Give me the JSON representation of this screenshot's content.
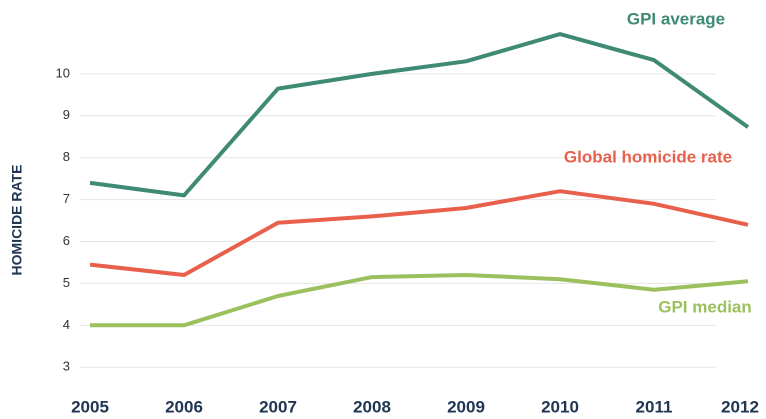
{
  "chart_data": {
    "type": "line",
    "ylabel": "HOMICIDE RATE",
    "categories": [
      "2005",
      "2006",
      "2007",
      "2008",
      "2009",
      "2010",
      "2011",
      "2012"
    ],
    "series": [
      {
        "name": "GPI average",
        "color": "#3f8a74",
        "values": [
          7.4,
          7.1,
          9.65,
          10.0,
          10.3,
          10.95,
          10.33,
          8.73
        ]
      },
      {
        "name": "Global homicide rate",
        "color": "#e8604c",
        "values": [
          5.45,
          5.2,
          6.45,
          6.6,
          6.8,
          7.2,
          6.9,
          6.4
        ]
      },
      {
        "name": "GPI median",
        "color": "#9dc05f",
        "values": [
          4.0,
          4.0,
          4.7,
          5.15,
          5.2,
          5.1,
          4.85,
          5.05
        ]
      }
    ],
    "ylim": [
      2.6,
      11
    ],
    "yticks": [
      3,
      4,
      5,
      6,
      7,
      8,
      9,
      10
    ],
    "grid": true
  }
}
